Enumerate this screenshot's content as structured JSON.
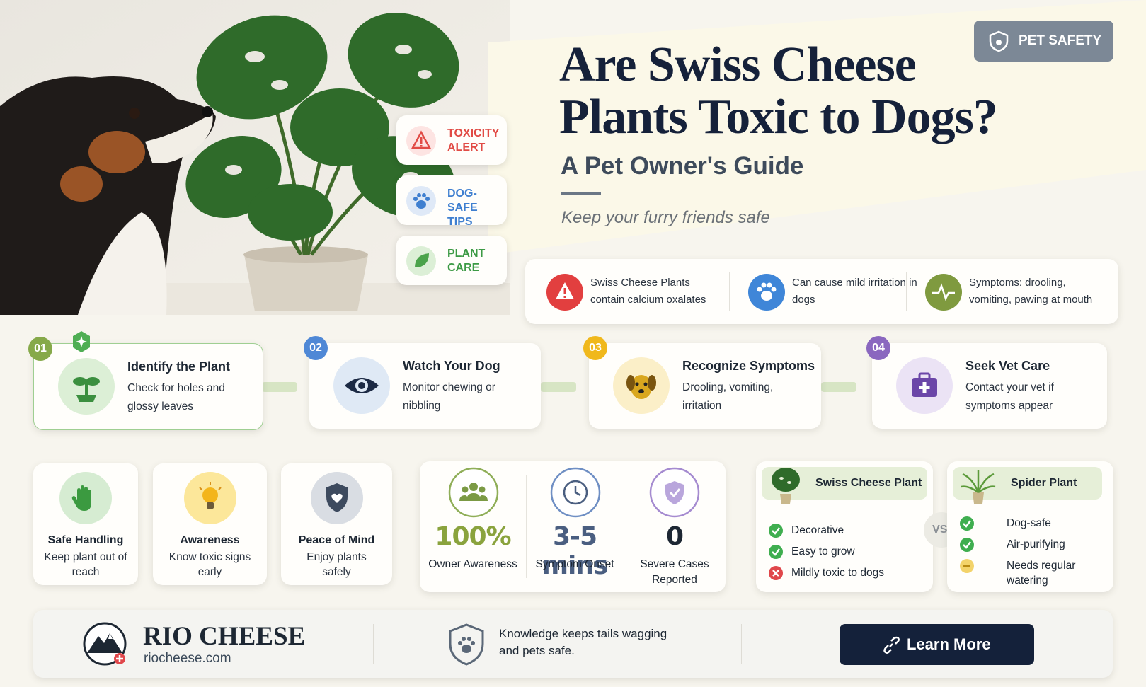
{
  "header": {
    "badge": "PET SAFETY",
    "title_line1": "Are Swiss Cheese",
    "title_line2": "Plants Toxic to Dogs?",
    "subtitle": "A Pet Owner's Guide",
    "tagline": "Keep your furry friends safe"
  },
  "tags": [
    {
      "label": "TOXICITY ALERT"
    },
    {
      "label": "DOG-SAFE TIPS"
    },
    {
      "label": "PLANT CARE"
    }
  ],
  "facts": [
    {
      "text": "Swiss Cheese Plants contain calcium oxalates"
    },
    {
      "text": "Can cause mild irritation in dogs"
    },
    {
      "text": "Symptoms: drooling, vomiting, pawing at mouth"
    }
  ],
  "steps": [
    {
      "number": "01",
      "title": "Identify the Plant",
      "text": "Check for holes and glossy leaves"
    },
    {
      "number": "02",
      "title": "Watch Your Dog",
      "text": "Monitor chewing or nibbling"
    },
    {
      "number": "03",
      "title": "Recognize Symptoms",
      "text": "Drooling, vomiting, irritation"
    },
    {
      "number": "04",
      "title": "Seek Vet Care",
      "text": "Contact your vet if symptoms appear"
    }
  ],
  "tips": [
    {
      "title": "Safe Handling",
      "text": "Keep plant out of reach"
    },
    {
      "title": "Awareness",
      "text": "Know toxic signs early"
    },
    {
      "title": "Peace of Mind",
      "text": "Enjoy plants safely"
    }
  ],
  "stats": [
    {
      "value": "100%",
      "label": "Owner Awareness"
    },
    {
      "value": "3-5 mins",
      "label": "Symptom Onset"
    },
    {
      "value": "0",
      "label": "Severe Cases Reported"
    }
  ],
  "comparison": {
    "left": {
      "title": "Swiss Cheese Plant",
      "items": [
        "Decorative",
        "Easy to grow",
        "Mildly toxic to dogs"
      ]
    },
    "vs": "VS.",
    "right": {
      "title": "Spider Plant",
      "items": [
        "Dog-safe",
        "Air-purifying",
        "Needs regular watering"
      ]
    }
  },
  "footer": {
    "brand": "RIO CHEESE",
    "url": "riocheese.com",
    "message": "Knowledge keeps tails wagging and pets safe.",
    "button": "Learn More"
  }
}
